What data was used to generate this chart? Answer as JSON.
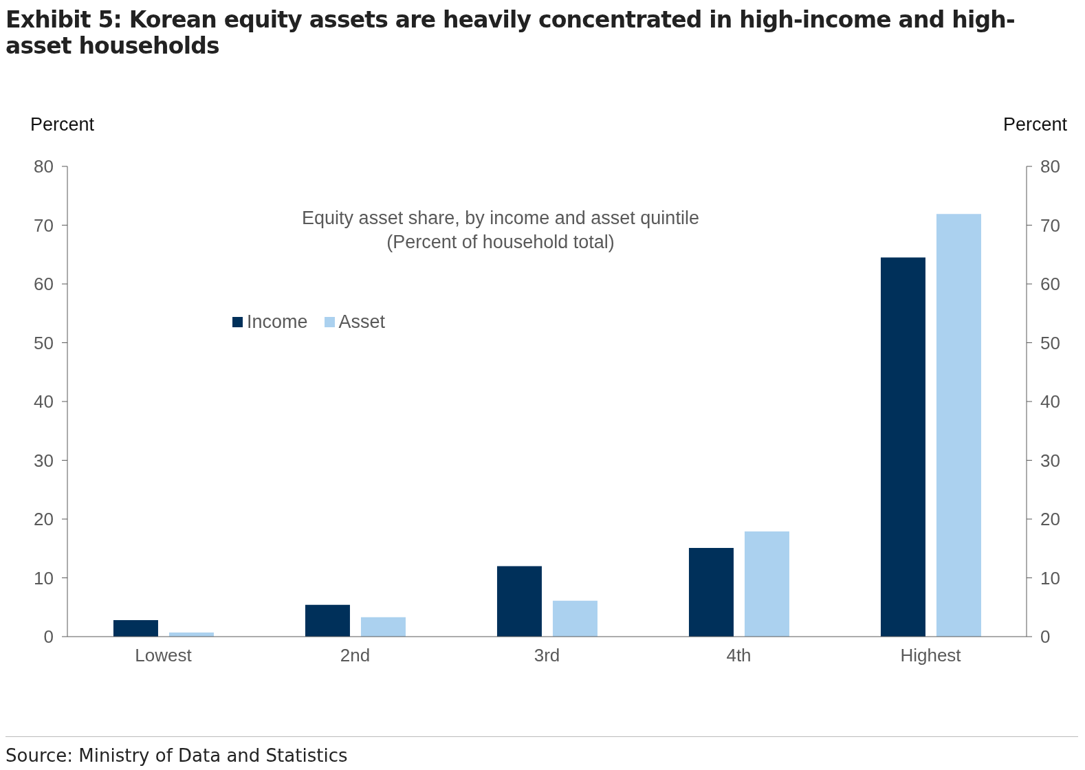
{
  "chart_data": {
    "type": "bar",
    "title": "Exhibit 5: Korean equity assets are heavily concentrated in high-income and high-asset households",
    "subtitle": "Equity asset share, by income and asset quintile",
    "ylabel": "Percent",
    "y2label": "Percent",
    "annotations": [
      "(Percent of household total)",
      "Source: Ministry of Data and Statistics"
    ],
    "categories": [
      "Lowest",
      "2nd",
      "3rd",
      "4th",
      "Highest"
    ],
    "series": [
      {
        "name": "Income",
        "color": "#00305a",
        "values": [
          2.8,
          5.4,
          12.0,
          15.1,
          64.5
        ]
      },
      {
        "name": "Asset",
        "color": "#abd1ef",
        "values": [
          0.7,
          3.3,
          6.1,
          17.9,
          71.9
        ]
      }
    ],
    "ylim": [
      0,
      80
    ],
    "yticks": [
      0,
      10,
      20,
      30,
      40,
      50,
      60,
      70,
      80
    ],
    "y2lim": [
      0,
      80
    ],
    "y2ticks": [
      0,
      10,
      20,
      30,
      40,
      50,
      60,
      70,
      80
    ],
    "legend": "top left"
  }
}
